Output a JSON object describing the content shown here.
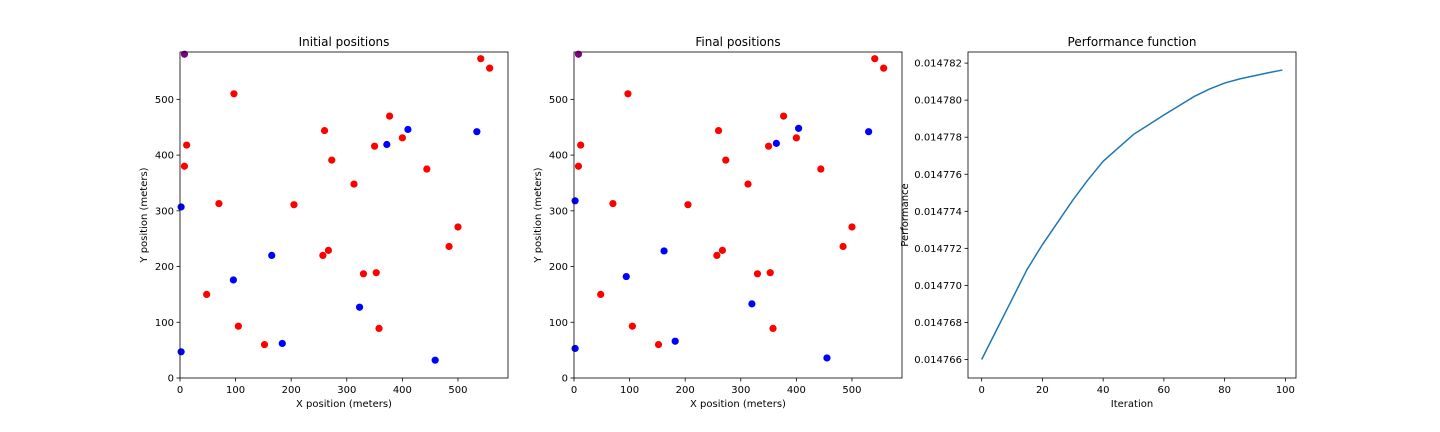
{
  "colors": {
    "red": "#ff0000",
    "blue": "#0000ff",
    "purple": "#800080",
    "line": "#1f77b4"
  },
  "chart_data": [
    {
      "type": "scatter",
      "title": "Initial positions",
      "xlabel": "X position (meters)",
      "ylabel": "Y position (meters)",
      "xlim": [
        0,
        590
      ],
      "ylim": [
        0,
        585
      ],
      "xticks": [
        0,
        100,
        200,
        300,
        400,
        500
      ],
      "yticks": [
        0,
        100,
        200,
        300,
        400,
        500
      ],
      "grid": false,
      "series": [
        {
          "color": "red",
          "points": [
            [
              12,
              418
            ],
            [
              8,
              380
            ],
            [
              97,
              510
            ],
            [
              70,
              313
            ],
            [
              48,
              150
            ],
            [
              105,
              93
            ],
            [
              152,
              60
            ],
            [
              205,
              311
            ],
            [
              260,
              444
            ],
            [
              273,
              391
            ],
            [
              313,
              348
            ],
            [
              350,
              416
            ],
            [
              377,
              470
            ],
            [
              400,
              431
            ],
            [
              444,
              375
            ],
            [
              500,
              271
            ],
            [
              484,
              236
            ],
            [
              541,
              573
            ],
            [
              557,
              556
            ],
            [
              267,
              229
            ],
            [
              257,
              220
            ],
            [
              330,
              187
            ],
            [
              353,
              189
            ],
            [
              358,
              89
            ]
          ]
        },
        {
          "color": "blue",
          "points": [
            [
              2,
              307
            ],
            [
              2,
              47
            ],
            [
              96,
              176
            ],
            [
              165,
              220
            ],
            [
              184,
              62
            ],
            [
              323,
              127
            ],
            [
              372,
              419
            ],
            [
              410,
              446
            ],
            [
              534,
              442
            ],
            [
              459,
              32
            ]
          ]
        },
        {
          "color": "purple",
          "points": [
            [
              8,
              581
            ]
          ]
        }
      ]
    },
    {
      "type": "scatter",
      "title": "Final positions",
      "xlabel": "X position (meters)",
      "ylabel": "Y position (meters)",
      "xlim": [
        0,
        590
      ],
      "ylim": [
        0,
        585
      ],
      "xticks": [
        0,
        100,
        200,
        300,
        400,
        500
      ],
      "yticks": [
        0,
        100,
        200,
        300,
        400,
        500
      ],
      "grid": false,
      "series": [
        {
          "color": "red",
          "points": [
            [
              12,
              418
            ],
            [
              8,
              380
            ],
            [
              97,
              510
            ],
            [
              70,
              313
            ],
            [
              48,
              150
            ],
            [
              105,
              93
            ],
            [
              152,
              60
            ],
            [
              205,
              311
            ],
            [
              260,
              444
            ],
            [
              273,
              391
            ],
            [
              313,
              348
            ],
            [
              350,
              416
            ],
            [
              377,
              470
            ],
            [
              400,
              431
            ],
            [
              444,
              375
            ],
            [
              500,
              271
            ],
            [
              484,
              236
            ],
            [
              541,
              573
            ],
            [
              557,
              556
            ],
            [
              267,
              229
            ],
            [
              257,
              220
            ],
            [
              330,
              187
            ],
            [
              353,
              189
            ],
            [
              358,
              89
            ]
          ]
        },
        {
          "color": "blue",
          "points": [
            [
              2,
              318
            ],
            [
              2,
              53
            ],
            [
              94,
              182
            ],
            [
              162,
              228
            ],
            [
              182,
              66
            ],
            [
              320,
              133
            ],
            [
              364,
              421
            ],
            [
              404,
              448
            ],
            [
              530,
              442
            ],
            [
              455,
              36
            ]
          ]
        },
        {
          "color": "purple",
          "points": [
            [
              8,
              581
            ]
          ]
        }
      ]
    },
    {
      "type": "line",
      "title": "Performance function",
      "xlabel": "Iteration",
      "ylabel": "Performance",
      "xlim": [
        -4.5,
        103.5
      ],
      "ylim": [
        0.014765,
        0.0147826
      ],
      "xticks": [
        0,
        20,
        40,
        60,
        80,
        100
      ],
      "yticks": [
        0.014766,
        0.014768,
        0.01477,
        0.014772,
        0.014774,
        0.014776,
        0.014778,
        0.01478,
        0.014782
      ],
      "ytick_labels": [
        "0.014766",
        "0.014768",
        "0.014770",
        "0.014772",
        "0.014774",
        "0.014776",
        "0.014778",
        "0.014780",
        "0.014782"
      ],
      "grid": false,
      "series": [
        {
          "color": "line",
          "x": [
            0,
            5,
            10,
            15,
            20,
            25,
            30,
            35,
            40,
            45,
            50,
            55,
            60,
            65,
            70,
            75,
            80,
            85,
            90,
            95,
            99
          ],
          "y": [
            0.014766,
            0.014767625,
            0.01476925,
            0.014770875,
            0.0147722,
            0.0147734,
            0.0147746,
            0.0147757,
            0.0147767,
            0.014777425,
            0.01477815,
            0.014778675,
            0.0147792,
            0.0147797,
            0.0147802,
            0.0147806,
            0.014780925,
            0.01478115,
            0.014781325,
            0.0147815,
            0.014781625
          ]
        }
      ]
    }
  ]
}
